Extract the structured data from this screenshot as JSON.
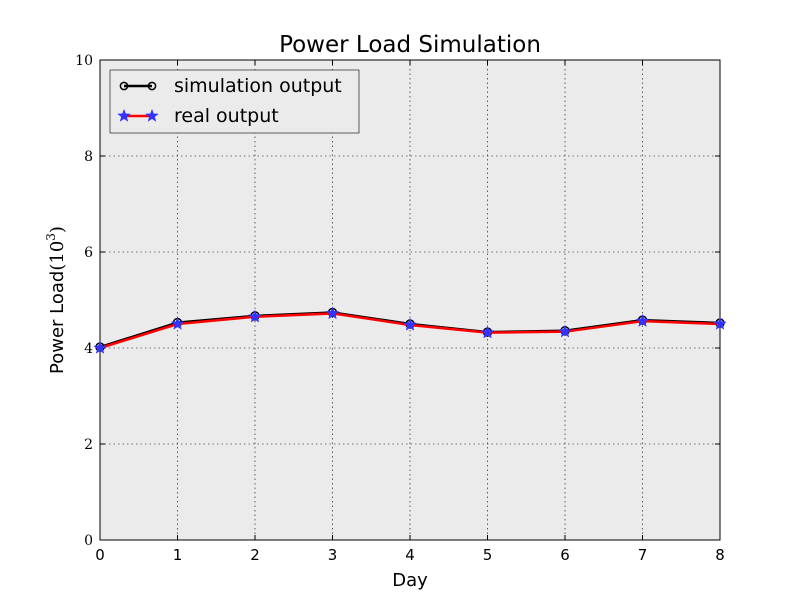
{
  "chart_data": {
    "type": "line",
    "title": "Power Load Simulation",
    "xlabel": "Day",
    "ylabel_main": "Power Load",
    "ylabel_base": "(10",
    "ylabel_exp": "3",
    "ylabel_close": ")",
    "xlim": [
      0,
      8
    ],
    "ylim": [
      0,
      10
    ],
    "xticks": [
      "0",
      "1",
      "2",
      "3",
      "4",
      "5",
      "6",
      "7",
      "8"
    ],
    "yticks": [
      "0",
      "2",
      "4",
      "6",
      "8",
      "10"
    ],
    "grid": true,
    "legend_position": "top-left",
    "x": [
      0,
      1,
      2,
      3,
      4,
      5,
      6,
      7,
      8
    ],
    "series": [
      {
        "name": "simulation output",
        "values": [
          4.02,
          4.53,
          4.67,
          4.74,
          4.5,
          4.33,
          4.36,
          4.58,
          4.52
        ],
        "color": "#000000",
        "marker": "circle"
      },
      {
        "name": "real output",
        "values": [
          4.0,
          4.5,
          4.65,
          4.72,
          4.48,
          4.32,
          4.34,
          4.56,
          4.5
        ],
        "color": "#ff0000",
        "marker_color": "#3333ff",
        "marker": "star"
      }
    ],
    "background_color": "#ebebeb"
  }
}
